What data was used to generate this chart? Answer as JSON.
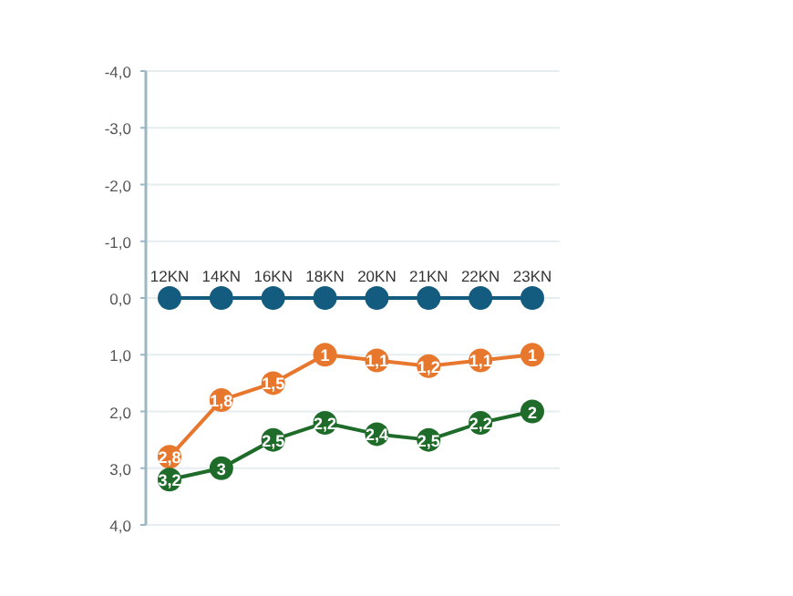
{
  "chart_data": {
    "type": "line",
    "categories": [
      "12KN",
      "14KN",
      "16KN",
      "18KN",
      "20KN",
      "21KN",
      "22KN",
      "23KN"
    ],
    "series": [
      {
        "color": "#135c80",
        "values": [
          0,
          0,
          0,
          0,
          0,
          0,
          0,
          0
        ]
      },
      {
        "color": "#e8772e",
        "values": [
          2.8,
          1.8,
          1.5,
          1,
          1.1,
          1.2,
          1.1,
          1
        ],
        "value_labels": [
          "2,8",
          "1,8",
          "1,5",
          "1",
          "1,1",
          "1,2",
          "1,1",
          "1"
        ]
      },
      {
        "color": "#1f6b2a",
        "values": [
          3.2,
          3,
          2.5,
          2.2,
          2.4,
          2.5,
          2.2,
          2
        ],
        "value_labels": [
          "3,2",
          "3",
          "2,5",
          "2,2",
          "2,4",
          "2,5",
          "2,2",
          "2"
        ]
      }
    ],
    "ylim": [
      4,
      -4
    ],
    "yticks": [
      {
        "value": -4,
        "label": "-4,0"
      },
      {
        "value": -3,
        "label": "-3,0"
      },
      {
        "value": -2,
        "label": "-2,0"
      },
      {
        "value": -1,
        "label": "-1,0"
      },
      {
        "value": 0,
        "label": "0,0"
      },
      {
        "value": 1,
        "label": "1,0"
      },
      {
        "value": 2,
        "label": "2,0"
      },
      {
        "value": 3,
        "label": "3,0"
      },
      {
        "value": 4,
        "label": "4,0"
      }
    ],
    "grid": "y",
    "marker": "circle",
    "line_style": "solid"
  }
}
